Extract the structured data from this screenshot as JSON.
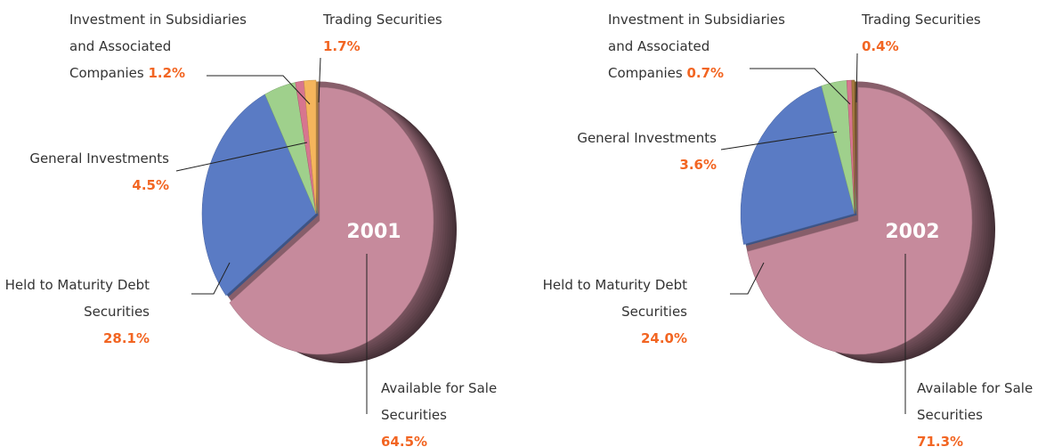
{
  "chart_data": [
    {
      "type": "pie",
      "title": "2001",
      "categories": [
        "Available for Sale Securities",
        "Held to Maturity Debt Securities",
        "General Investments",
        "Investment in Subsidiaries and Associated Companies",
        "Trading Securities"
      ],
      "values": [
        64.5,
        28.1,
        4.5,
        1.2,
        1.7
      ],
      "value_labels": [
        "64.5%",
        "28.1%",
        "4.5%",
        "1.2%",
        "1.7%"
      ],
      "colors": [
        "#c68a9c",
        "#5a7bc4",
        "#9fd08c",
        "#d7758f",
        "#f5b55c"
      ]
    },
    {
      "type": "pie",
      "title": "2002",
      "categories": [
        "Available for Sale Securities",
        "Held to Maturity Debt Securities",
        "General Investments",
        "Investment in Subsidiaries and Associated Companies",
        "Trading Securities"
      ],
      "values": [
        71.3,
        24.0,
        3.6,
        0.7,
        0.4
      ],
      "value_labels": [
        "71.3%",
        "24.0%",
        "3.6%",
        "0.7%",
        "0.4%"
      ],
      "colors": [
        "#c68a9c",
        "#5a7bc4",
        "#9fd08c",
        "#d7758f",
        "#a67a3e"
      ]
    }
  ]
}
